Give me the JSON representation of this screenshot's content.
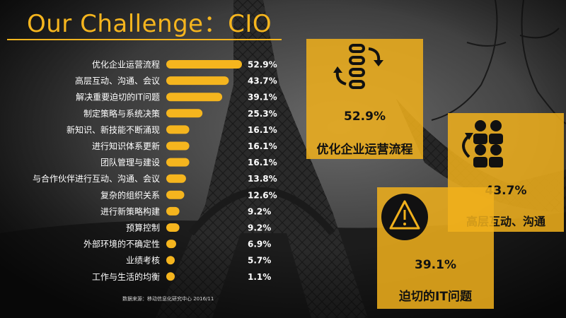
{
  "header": {
    "title": "Our Challenge：CIO"
  },
  "chart_data": {
    "type": "bar",
    "orientation": "horizontal",
    "categories": [
      "优化企业运营流程",
      "高层互动、沟通、会议",
      "解决重要迫切的IT问题",
      "制定策略与系统决策",
      "新知识、新技能不断涌现",
      "进行知识体系更新",
      "团队管理与建设",
      "与合作伙伴进行互动、沟通、会议",
      "复杂的组织关系",
      "进行新策略构建",
      "预算控制",
      "外部环境的不确定性",
      "业绩考核",
      "工作与生活的均衡"
    ],
    "values": [
      52.9,
      43.7,
      39.1,
      25.3,
      16.1,
      16.1,
      16.1,
      13.8,
      12.6,
      9.2,
      9.2,
      6.9,
      5.7,
      1.1
    ],
    "value_labels": [
      "52.9%",
      "43.7%",
      "39.1%",
      "25.3%",
      "16.1%",
      "16.1%",
      "16.1%",
      "13.8%",
      "12.6%",
      "9.2%",
      "9.2%",
      "6.9%",
      "5.7%",
      "1.1%"
    ],
    "xlim": [
      0,
      52.9
    ],
    "grid": false,
    "bar_color": "#f5b51e"
  },
  "source_note": "数据来源：移动信息化研究中心 2016/11",
  "highlights": [
    {
      "icon": "workflow-icon",
      "value": "52.9%",
      "label": "优化企业运营流程"
    },
    {
      "icon": "team-icon",
      "value": "43.7%",
      "label": "高层互动、沟通"
    },
    {
      "icon": "warning-icon",
      "value": "39.1%",
      "label": "迫切的IT问题"
    }
  ],
  "colors": {
    "accent": "#f5b51e",
    "card": "#f0b01c",
    "text": "#ffffff"
  }
}
